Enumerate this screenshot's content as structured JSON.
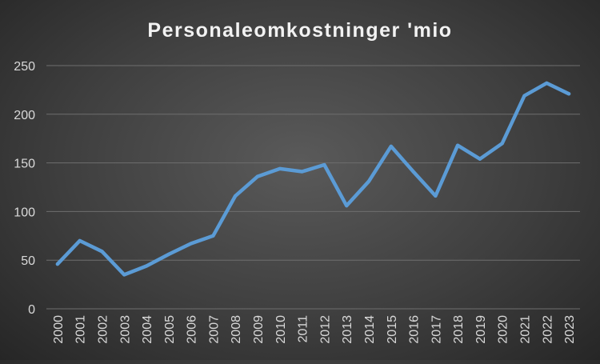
{
  "chart_data": {
    "type": "line",
    "title": "Personaleomkostninger 'mio",
    "xlabel": "",
    "ylabel": "",
    "categories": [
      "2000",
      "2001",
      "2002",
      "2003",
      "2004",
      "2005",
      "2006",
      "2007",
      "2008",
      "2009",
      "2010",
      "2011",
      "2012",
      "2013",
      "2014",
      "2015",
      "2016",
      "2017",
      "2018",
      "2019",
      "2020",
      "2021",
      "2022",
      "2023"
    ],
    "series": [
      {
        "values": [
          46,
          70,
          59,
          35,
          44,
          56,
          67,
          75,
          116,
          136,
          144,
          141,
          148,
          106,
          131,
          167,
          141,
          116,
          168,
          154,
          170,
          219,
          232,
          221
        ]
      }
    ],
    "y_ticks": [
      "0",
      "50",
      "100",
      "150",
      "200",
      "250"
    ],
    "ylim": [
      0,
      250
    ],
    "grid": true,
    "legend": "none",
    "colors": {
      "line": "#5b9bd5",
      "gridline": "#6e6e6e",
      "text": "#d9d9d9",
      "title": "#f2f2f2"
    }
  }
}
